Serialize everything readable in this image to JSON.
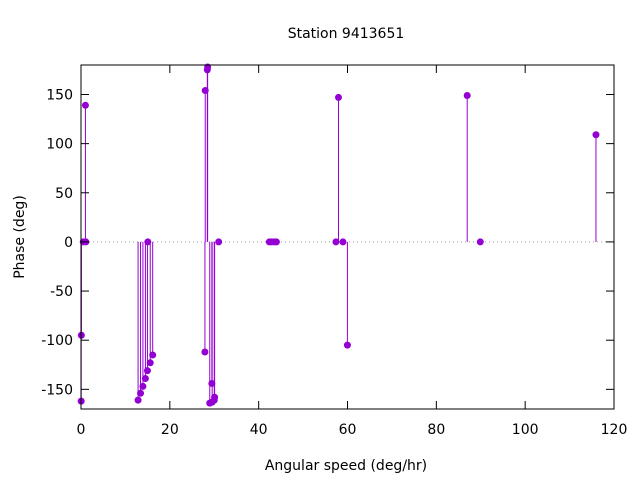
{
  "chart_data": {
    "type": "scatter",
    "style": "impulses-with-points",
    "title": "Station 9413651",
    "xlabel": "Angular speed (deg/hr)",
    "ylabel": "Phase (deg)",
    "xlim": [
      0,
      120
    ],
    "ylim": [
      -170,
      180
    ],
    "xticks": [
      0,
      20,
      40,
      60,
      80,
      100,
      120
    ],
    "yticks": [
      -150,
      -100,
      -50,
      0,
      50,
      100,
      150
    ],
    "grid": false,
    "zero_line": "dotted",
    "color": "#9400d3",
    "points": [
      {
        "x": 0.04,
        "y": -162
      },
      {
        "x": 0.08,
        "y": -95
      },
      {
        "x": 0.5,
        "y": 0
      },
      {
        "x": 1.0,
        "y": 139
      },
      {
        "x": 1.1,
        "y": 0
      },
      {
        "x": 12.85,
        "y": -161
      },
      {
        "x": 13.4,
        "y": -154
      },
      {
        "x": 13.94,
        "y": -147
      },
      {
        "x": 14.5,
        "y": -139
      },
      {
        "x": 14.96,
        "y": -131
      },
      {
        "x": 15.04,
        "y": 0
      },
      {
        "x": 15.59,
        "y": -123
      },
      {
        "x": 16.14,
        "y": -115
      },
      {
        "x": 27.9,
        "y": -112
      },
      {
        "x": 27.97,
        "y": 154
      },
      {
        "x": 28.44,
        "y": 175
      },
      {
        "x": 28.51,
        "y": 178
      },
      {
        "x": 28.99,
        "y": -164
      },
      {
        "x": 29.46,
        "y": -144
      },
      {
        "x": 29.53,
        "y": -163
      },
      {
        "x": 30.0,
        "y": -161
      },
      {
        "x": 30.08,
        "y": -158
      },
      {
        "x": 31.0,
        "y": 0
      },
      {
        "x": 42.4,
        "y": 0
      },
      {
        "x": 42.9,
        "y": 0
      },
      {
        "x": 43.5,
        "y": 0
      },
      {
        "x": 44.0,
        "y": 0
      },
      {
        "x": 57.4,
        "y": 0
      },
      {
        "x": 57.97,
        "y": 147
      },
      {
        "x": 58.98,
        "y": 0
      },
      {
        "x": 59.98,
        "y": -105
      },
      {
        "x": 86.95,
        "y": 149
      },
      {
        "x": 89.9,
        "y": 0
      },
      {
        "x": 115.94,
        "y": 109
      }
    ]
  }
}
